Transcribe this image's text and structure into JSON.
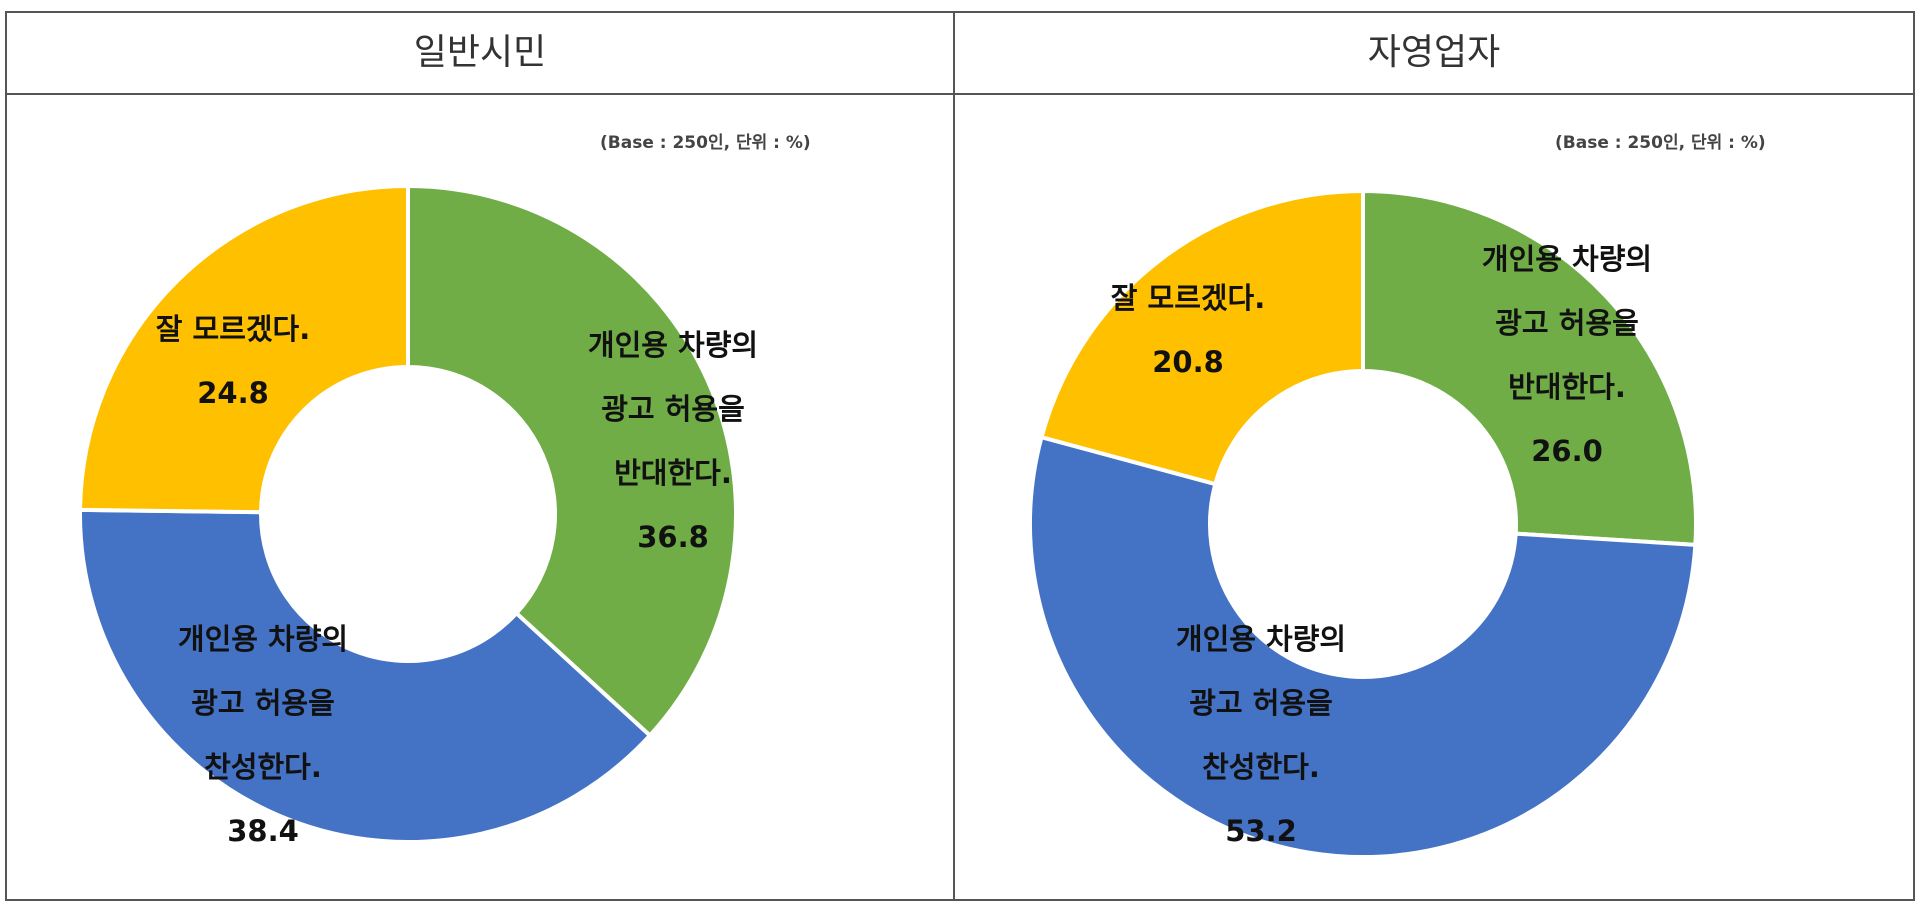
{
  "chart_data": [
    {
      "type": "pie",
      "title": "일반시민",
      "note": "(Base : 250인, 단위 : %)",
      "categories": [
        "개인용 차량의\n광고 허용을\n반대한다.",
        "개인용 차량의\n광고 허용을\n찬성한다.",
        "잘 모르겠다."
      ],
      "values": [
        36.8,
        38.4,
        24.8
      ],
      "value_labels": [
        "36.8",
        "38.4",
        "24.8"
      ],
      "colors": [
        "#70ad47",
        "#4472c4",
        "#ffc000"
      ]
    },
    {
      "type": "pie",
      "title": "자영업자",
      "note": "(Base : 250인, 단위 : %)",
      "categories": [
        "개인용 차량의\n광고 허용을\n반대한다.",
        "개인용 차량의\n광고 허용을\n찬성한다.",
        "잘 모르겠다."
      ],
      "values": [
        26.0,
        53.2,
        20.8
      ],
      "value_labels": [
        "26.0",
        "53.2",
        "20.8"
      ],
      "colors": [
        "#70ad47",
        "#4472c4",
        "#ffc000"
      ]
    }
  ]
}
